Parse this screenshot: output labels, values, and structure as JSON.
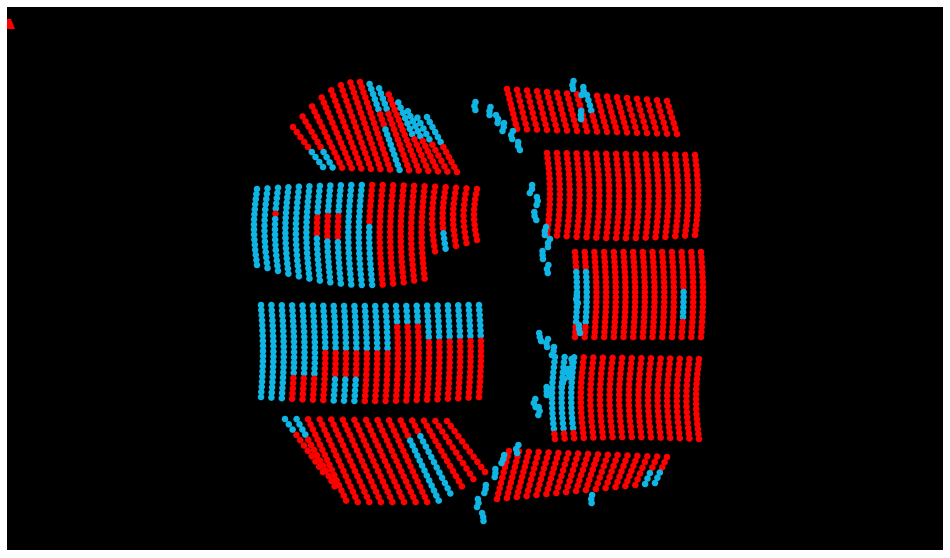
{
  "scene": {
    "background_color": "#000000",
    "frame_color": "#ffffff",
    "palette": {
      "occupied": "#ff0000",
      "vacant": "#11b5e4"
    },
    "legend": [],
    "title": ""
  }
}
